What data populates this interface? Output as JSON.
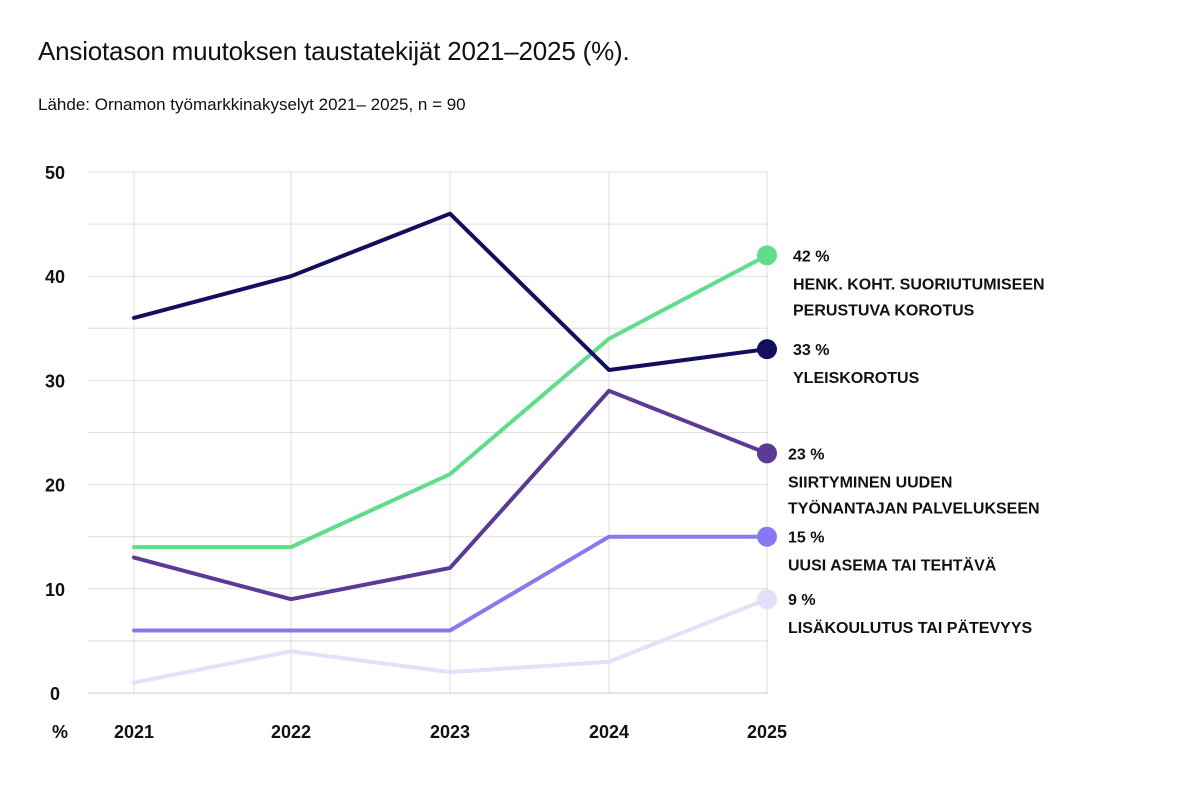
{
  "title": "Ansiotason muutoksen taustatekijät 2021–2025 (%).",
  "subtitle": "Lähde: Ornamon työmarkkinakyselyt 2021– 2025, n = 90",
  "chart_data": {
    "type": "line",
    "title": "Ansiotason muutoksen taustatekijät 2021–2025 (%).",
    "subtitle": "Lähde: Ornamon työmarkkinakyselyt 2021– 2025, n = 90",
    "ylabel": "%",
    "x": [
      "2021",
      "2022",
      "2023",
      "2024",
      "2025"
    ],
    "ylim": [
      0,
      50
    ],
    "yticks": [
      "0",
      "10",
      "20",
      "30",
      "40",
      "50"
    ],
    "grid": true,
    "legend": "direct labels at line ends (right)",
    "series": [
      {
        "name": "HENK. KOHT. SUORIUTUMISEEN PERUSTUVA KOROTUS",
        "label_lines": [
          "HENK. KOHT. SUORIUTUMISEEN",
          "PERUSTUVA KOROTUS"
        ],
        "end_label": "42 %",
        "color": "#5EDD8A",
        "values": [
          14,
          14,
          21,
          34,
          42
        ]
      },
      {
        "name": "YLEISKOROTUS",
        "label_lines": [
          "YLEISKOROTUS"
        ],
        "end_label": "33 %",
        "color": "#12105E",
        "values": [
          36,
          40,
          46,
          31,
          33
        ]
      },
      {
        "name": "SIIRTYMINEN UUDEN TYÖNANTAJAN PALVELUKSEEN",
        "label_lines": [
          "SIIRTYMINEN UUDEN",
          "TYÖNANTAJAN PALVELUKSEEN"
        ],
        "end_label": "23 %",
        "color": "#5B3A96",
        "values": [
          13,
          9,
          12,
          29,
          23
        ]
      },
      {
        "name": "UUSI ASEMA TAI TEHTÄVÄ",
        "label_lines": [
          "UUSI ASEMA TAI TEHTÄVÄ"
        ],
        "end_label": "15 %",
        "color": "#8779F0",
        "values": [
          6,
          6,
          6,
          15,
          15
        ]
      },
      {
        "name": "LISÄKOULUTUS TAI PÄTEVYYS",
        "label_lines": [
          "LISÄKOULUTUS TAI PÄTEVYYS"
        ],
        "end_label": "9 %",
        "color": "#E3E0FB",
        "values": [
          1,
          4,
          2,
          3,
          9
        ]
      }
    ]
  }
}
